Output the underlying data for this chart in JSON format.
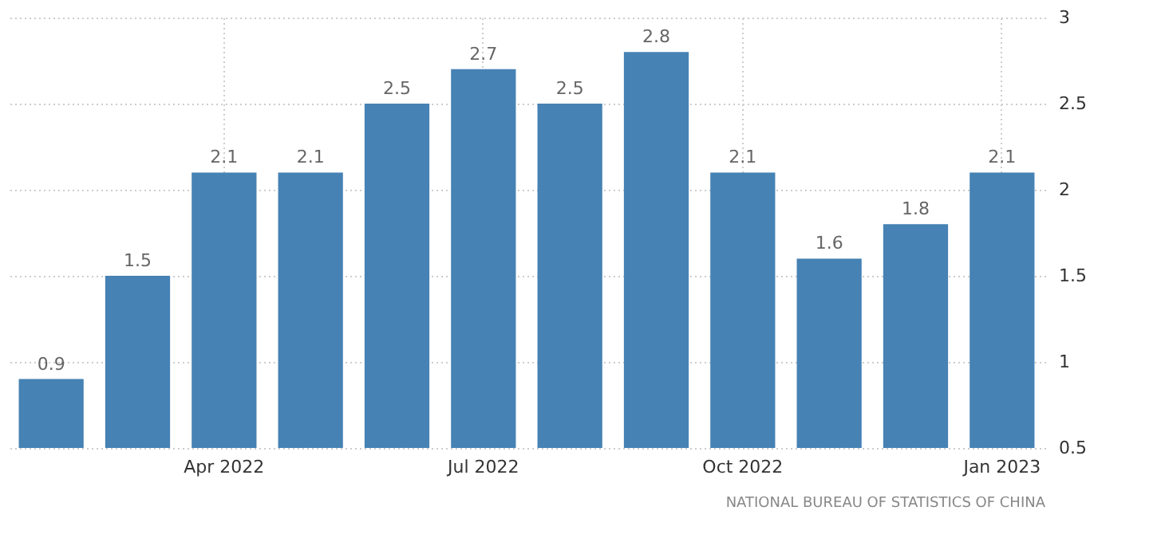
{
  "chart_data": {
    "type": "bar",
    "categories": [
      null,
      null,
      "Apr 2022",
      null,
      null,
      "Jul 2022",
      null,
      null,
      "Oct 2022",
      null,
      null,
      "Jan 2023"
    ],
    "values": [
      0.9,
      1.5,
      2.1,
      2.1,
      2.5,
      2.7,
      2.5,
      2.8,
      2.1,
      1.6,
      1.8,
      2.1
    ],
    "color": "#4682b4",
    "ylim": [
      0.5,
      3
    ],
    "yticks": [
      0.5,
      1,
      1.5,
      2,
      2.5,
      3
    ],
    "grid": true,
    "data_labels": true,
    "annotations": [
      "NATIONAL BUREAU OF STATISTICS OF CHINA"
    ]
  }
}
